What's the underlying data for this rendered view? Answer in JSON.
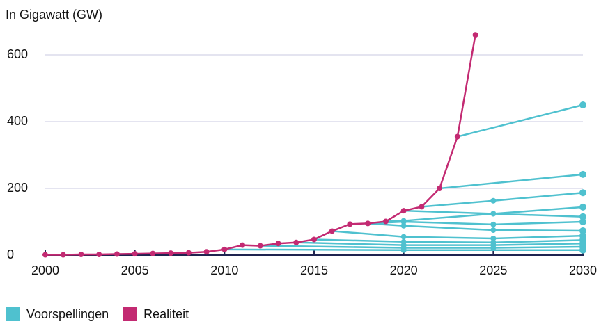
{
  "chart_data": {
    "type": "line",
    "y_label": "In Gigawatt (GW)",
    "xlim": [
      2000,
      2030
    ],
    "xticks": [
      2000,
      2005,
      2010,
      2015,
      2020,
      2025,
      2030
    ],
    "ylim": [
      0,
      700
    ],
    "yticks": [
      0,
      200,
      400,
      600
    ],
    "grid": true,
    "legend": "bottom-left",
    "series": [
      {
        "name": "Voorspellingen",
        "color": "#4fc1cf",
        "lines": [
          {
            "x": [
              2023,
              2030
            ],
            "values": [
              355,
              450
            ]
          },
          {
            "x": [
              2022,
              2030
            ],
            "values": [
              200,
              242
            ]
          },
          {
            "x": [
              2021,
              2025,
              2030
            ],
            "values": [
              145,
              163,
              187
            ]
          },
          {
            "x": [
              2020,
              2025,
              2030
            ],
            "values": [
              133,
              124,
              144
            ]
          },
          {
            "x": [
              2019,
              2020,
              2025,
              2030
            ],
            "values": [
              101,
              103,
              124,
              115
            ]
          },
          {
            "x": [
              2018,
              2020,
              2025,
              2030
            ],
            "values": [
              95,
              100,
              92,
              100
            ]
          },
          {
            "x": [
              2018,
              2020,
              2025,
              2030
            ],
            "values": [
              95,
              88,
              75,
              73
            ]
          },
          {
            "x": [
              2016,
              2020,
              2025,
              2030
            ],
            "values": [
              72,
              55,
              50,
              58
            ]
          },
          {
            "x": [
              2015,
              2020,
              2025,
              2030
            ],
            "values": [
              47,
              40,
              38,
              45
            ]
          },
          {
            "x": [
              2014,
              2020,
              2025,
              2030
            ],
            "values": [
              38,
              30,
              30,
              35
            ]
          },
          {
            "x": [
              2012,
              2020,
              2025,
              2030
            ],
            "values": [
              28,
              22,
              22,
              25
            ]
          },
          {
            "x": [
              2010,
              2020,
              2030
            ],
            "values": [
              17,
              15,
              15
            ]
          }
        ]
      },
      {
        "name": "Realiteit",
        "color": "#c32a72",
        "x": [
          2000,
          2001,
          2002,
          2003,
          2004,
          2005,
          2006,
          2007,
          2008,
          2009,
          2010,
          2011,
          2012,
          2013,
          2014,
          2015,
          2016,
          2017,
          2018,
          2019,
          2020,
          2021,
          2022,
          2023,
          2024
        ],
        "values": [
          1,
          1,
          2,
          2,
          3,
          4,
          5,
          6,
          7,
          10,
          17,
          30,
          28,
          35,
          38,
          47,
          72,
          93,
          95,
          101,
          133,
          145,
          200,
          355,
          660
        ]
      }
    ]
  }
}
